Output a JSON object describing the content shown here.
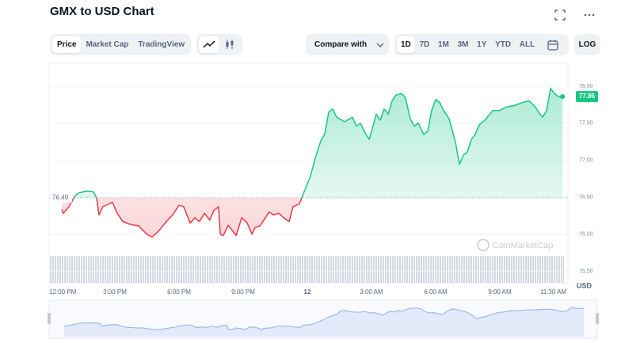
{
  "header": {
    "title": "GMX to USD Chart"
  },
  "toolbar": {
    "views": [
      "Price",
      "Market Cap",
      "TradingView"
    ],
    "compare": "Compare with",
    "ranges": [
      "1D",
      "7D",
      "1M",
      "3M",
      "1Y",
      "YTD",
      "ALL"
    ],
    "log": "LOG"
  },
  "chart_data": {
    "type": "line",
    "x": [
      0.52,
      0.59,
      0.85,
      1.15,
      1.33,
      1.7,
      2.0,
      2.15,
      2.26,
      2.44,
      2.89,
      3.11,
      3.37,
      3.74,
      4.11,
      4.48,
      4.74,
      5.04,
      5.41,
      5.7,
      6.0,
      6.22,
      6.52,
      6.74,
      6.96,
      7.19,
      7.44,
      7.63,
      7.85,
      7.93,
      8.07,
      8.3,
      8.67,
      8.93,
      9.19,
      9.41,
      9.56,
      9.78,
      10.04,
      10.22,
      10.41,
      10.67,
      10.89,
      11.15,
      11.33,
      11.63,
      11.89,
      12.15,
      12.37,
      12.63,
      12.81,
      13.0,
      13.19,
      13.37,
      13.74,
      14.11,
      14.3,
      14.48,
      14.74,
      14.89,
      15.04,
      15.22,
      15.41,
      15.59,
      15.78,
      15.96,
      16.15,
      16.41,
      16.59,
      16.81,
      17.0,
      17.19,
      17.44,
      17.63,
      17.81,
      18.0,
      18.19,
      18.37,
      18.63,
      18.93,
      19.11,
      19.3,
      19.48,
      19.67,
      19.85,
      20.04,
      20.3,
      20.67,
      20.96,
      21.33,
      21.7,
      22.07,
      22.37,
      22.63,
      22.81,
      23.0,
      23.19,
      23.37,
      23.56,
      23.74,
      23.93
    ],
    "values": [
      76.33,
      76.28,
      76.37,
      76.52,
      76.56,
      76.58,
      76.57,
      76.49,
      76.26,
      76.37,
      76.43,
      76.28,
      76.17,
      76.13,
      76.11,
      76.0,
      75.96,
      76.04,
      76.17,
      76.26,
      76.39,
      76.37,
      76.15,
      76.22,
      76.17,
      76.28,
      76.19,
      76.32,
      76.37,
      76.0,
      75.98,
      76.12,
      75.98,
      76.22,
      76.15,
      76.0,
      76.09,
      76.11,
      76.22,
      76.3,
      76.26,
      76.28,
      76.22,
      76.17,
      76.37,
      76.41,
      76.6,
      76.79,
      77.03,
      77.26,
      77.35,
      77.65,
      77.69,
      77.58,
      77.52,
      77.58,
      77.46,
      77.5,
      77.35,
      77.28,
      77.43,
      77.62,
      77.54,
      77.69,
      77.62,
      77.8,
      77.88,
      77.9,
      77.84,
      77.56,
      77.46,
      77.5,
      77.35,
      77.39,
      77.67,
      77.82,
      77.78,
      77.67,
      77.56,
      77.24,
      76.94,
      77.07,
      77.11,
      77.28,
      77.35,
      77.48,
      77.54,
      77.67,
      77.67,
      77.72,
      77.74,
      77.78,
      77.8,
      77.73,
      77.65,
      77.58,
      77.67,
      77.97,
      77.9,
      77.86,
      77.86
    ],
    "baseline": 76.49,
    "current_price": 77.86,
    "up_color": "#16c784",
    "down_color": "#ea3943",
    "xlim": [
      0,
      24
    ],
    "xticks": [
      {
        "value": 0,
        "label": "12:00 PM"
      },
      {
        "value": 3,
        "label": "3:00 PM"
      },
      {
        "value": 6,
        "label": "6:00 PM"
      },
      {
        "value": 9,
        "label": "9:00 PM"
      },
      12,
      {
        "value": 15,
        "label": "3:00 AM"
      },
      {
        "value": 18,
        "label": "6:00 AM"
      },
      {
        "value": 21,
        "label": "9:00 AM"
      },
      {
        "value": 23.5,
        "label": "11:30 AM"
      }
    ],
    "ylim": [
      75.34,
      78.31
    ],
    "yticks": [
      {
        "value": 75.5,
        "label": "75.50"
      },
      {
        "value": 76,
        "label": "76.00"
      },
      {
        "value": 76.5,
        "label": "76.50"
      },
      {
        "value": 77,
        "label": "77.00"
      },
      {
        "value": 77.5,
        "label": "77.50"
      },
      {
        "value": 78,
        "label": "78.00"
      }
    ],
    "y_unit": "USD",
    "watermark": "CoinMarketCap",
    "grid": true
  }
}
